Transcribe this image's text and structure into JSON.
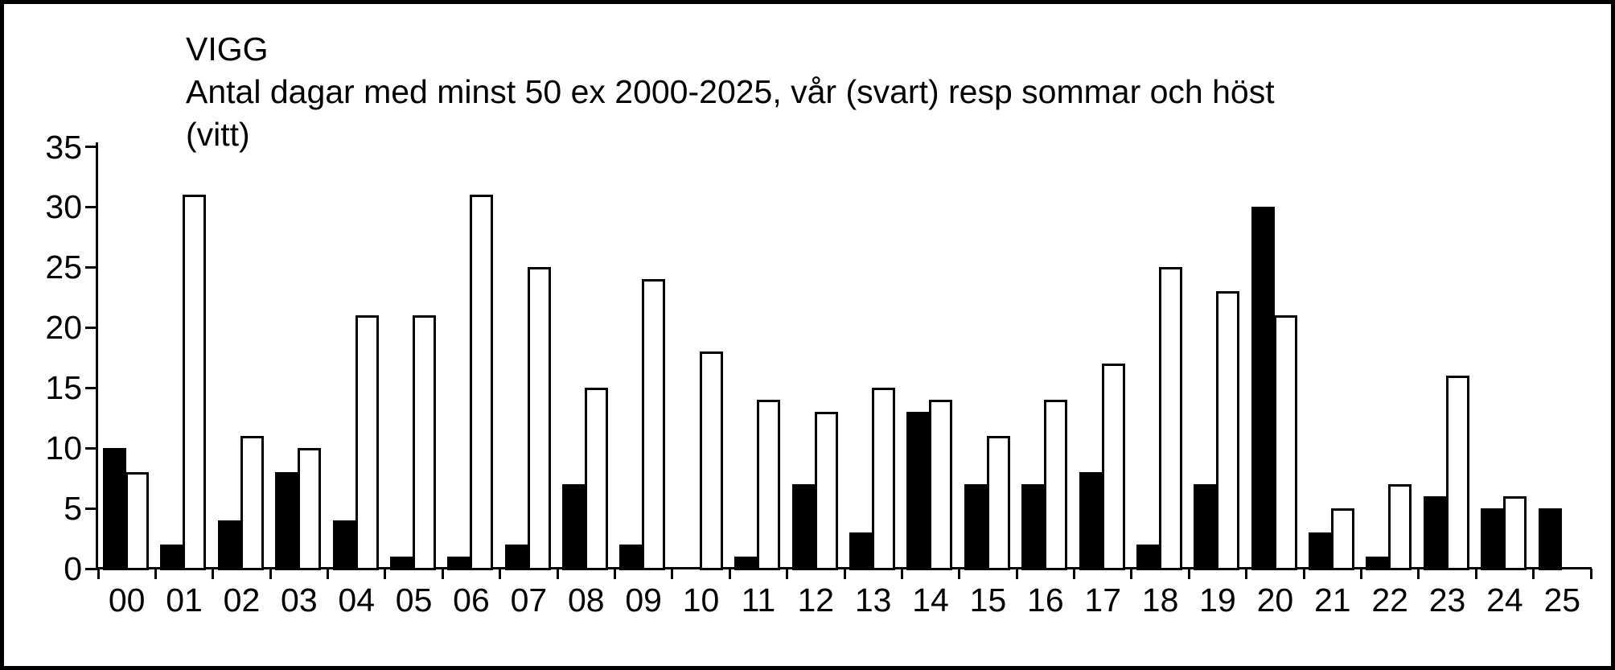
{
  "chart_data": {
    "type": "bar",
    "title_lines": [
      "VIGG",
      "Antal dagar med minst 50 ex 2000-2025, vår (svart) resp sommar och höst",
      "(vitt)"
    ],
    "categories": [
      "00",
      "01",
      "02",
      "03",
      "04",
      "05",
      "06",
      "07",
      "08",
      "09",
      "10",
      "11",
      "12",
      "13",
      "14",
      "15",
      "16",
      "17",
      "18",
      "19",
      "20",
      "21",
      "22",
      "23",
      "24",
      "25"
    ],
    "series": [
      {
        "name": "vår (svart)",
        "color": "#000000",
        "values": [
          10,
          2,
          4,
          8,
          4,
          1,
          1,
          2,
          7,
          2,
          0,
          1,
          7,
          3,
          13,
          7,
          7,
          8,
          2,
          7,
          30,
          3,
          1,
          6,
          5,
          5
        ]
      },
      {
        "name": "sommar och höst (vitt)",
        "color": "#ffffff",
        "values": [
          8,
          31,
          11,
          10,
          21,
          21,
          31,
          25,
          15,
          24,
          18,
          14,
          13,
          15,
          14,
          11,
          14,
          17,
          25,
          23,
          21,
          5,
          7,
          16,
          6,
          0
        ]
      }
    ],
    "xlabel": "",
    "ylabel": "",
    "ylim": [
      0,
      35
    ],
    "yticks": [
      0,
      5,
      10,
      15,
      20,
      25,
      30,
      35
    ],
    "grid": false,
    "legend_position": "in-title",
    "frame_color": "#000000",
    "background_color": "#ffffff"
  }
}
